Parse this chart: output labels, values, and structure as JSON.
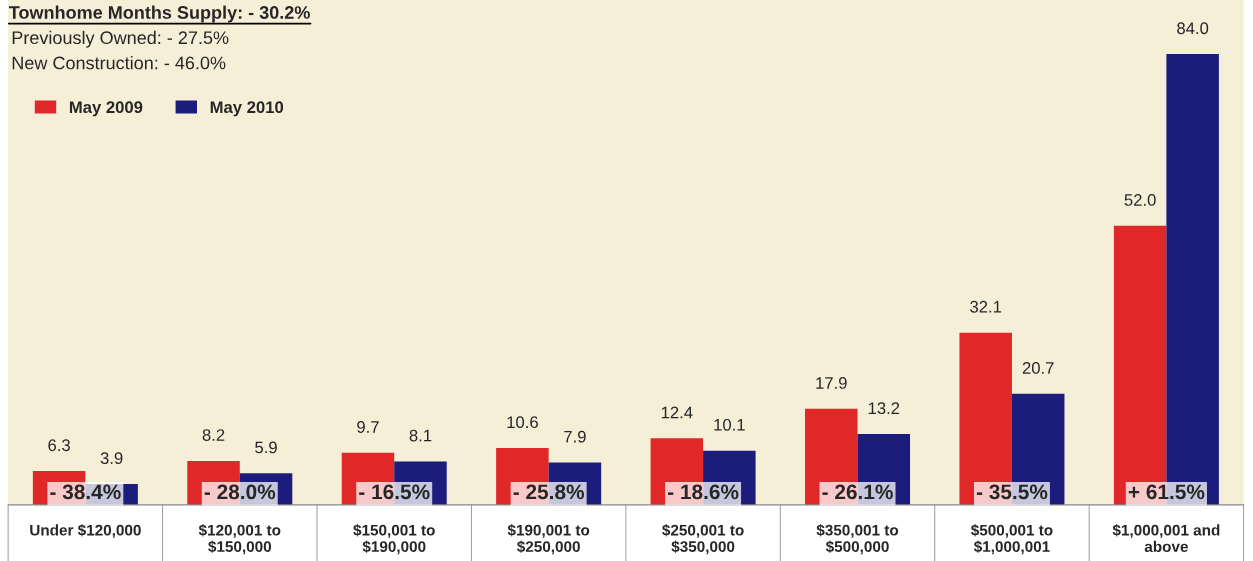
{
  "chart_data": {
    "type": "bar",
    "title": "Townhome Months Supply: - 30.2%",
    "categories": [
      "Under $120,000",
      "$120,001 to\n$150,000",
      "$150,001 to\n$190,000",
      "$190,001 to\n$250,000",
      "$250,001 to\n$350,000",
      "$350,001 to\n$500,000",
      "$500,001 to\n$1,000,001",
      "$1,000,001 and\nabove"
    ],
    "series": [
      {
        "name": "May 2009",
        "color": "#e02828",
        "values": [
          6.3,
          8.2,
          9.7,
          10.6,
          12.4,
          17.9,
          32.1,
          52.0
        ],
        "value_labels": [
          "6.3",
          "8.2",
          "9.7",
          "10.6",
          "12.4",
          "17.9",
          "32.1",
          "52.0"
        ]
      },
      {
        "name": "May 2010",
        "color": "#1c1c7c",
        "values": [
          3.9,
          5.9,
          8.1,
          7.9,
          10.1,
          13.2,
          20.7,
          84.0
        ],
        "value_labels": [
          "3.9",
          "5.9",
          "8.1",
          "7.9",
          "10.1",
          "13.2",
          "20.7",
          "84.0"
        ]
      }
    ],
    "legend": "top left",
    "grid": false,
    "annotations": [
      "Previously Owned: - 27.5%",
      "New Construction: - 46.0%",
      {
        "text": "- 38.4%",
        "x": "Under $120,000",
        "y": 0
      },
      {
        "text": "- 28.0%",
        "x": "$120,001 to\n$150,000",
        "y": 0
      },
      {
        "text": "- 16.5%",
        "x": "$150,001 to\n$190,000",
        "y": 0
      },
      {
        "text": "- 25.8%",
        "x": "$190,001 to\n$250,000",
        "y": 0
      },
      {
        "text": "- 18.6%",
        "x": "$250,001 to\n$350,000",
        "y": 0
      },
      {
        "text": "- 26.1%",
        "x": "$350,001 to\n$500,000",
        "y": 0
      },
      {
        "text": "- 35.5%",
        "x": "$500,001 to\n$1,000,001",
        "y": 0
      },
      {
        "text": "+ 61.5%",
        "x": "$1,000,001 and\nabove",
        "y": 0
      }
    ]
  }
}
